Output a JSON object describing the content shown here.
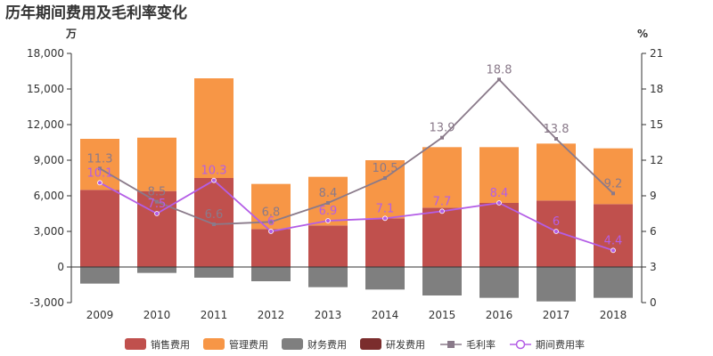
{
  "chart_data": {
    "type": "bar",
    "title": "历年期间费用及毛利率变化",
    "left_unit": "万",
    "right_unit": "%",
    "categories": [
      "2009",
      "2010",
      "2011",
      "2012",
      "2013",
      "2014",
      "2015",
      "2016",
      "2017",
      "2018"
    ],
    "left_axis": {
      "min": -3000,
      "max": 18000,
      "ticks": [
        "-3,000",
        "0",
        "3,000",
        "6,000",
        "9,000",
        "12,000",
        "15,000",
        "18,000"
      ]
    },
    "right_axis": {
      "min": 0,
      "max": 21,
      "ticks": [
        "0",
        "3",
        "6",
        "9",
        "12",
        "15",
        "18",
        "21"
      ]
    },
    "series": [
      {
        "name": "销售费用",
        "kind": "bar",
        "color": "#c0504d",
        "values": [
          6500,
          6400,
          7500,
          3200,
          3500,
          4100,
          5000,
          5400,
          5600,
          5300
        ]
      },
      {
        "name": "管理费用",
        "kind": "bar",
        "color": "#f79646",
        "values": [
          4300,
          4500,
          8400,
          3800,
          4100,
          4900,
          5100,
          4700,
          4800,
          4700
        ]
      },
      {
        "name": "财务费用",
        "kind": "bar",
        "color": "#7f7f7f",
        "values": [
          -1400,
          -500,
          -900,
          -1200,
          -1700,
          -1900,
          -2400,
          -2600,
          -2900,
          -2600
        ]
      },
      {
        "name": "研发费用",
        "kind": "bar",
        "color": "#7b2d2d",
        "values": [
          0,
          0,
          0,
          0,
          0,
          0,
          0,
          0,
          0,
          0
        ]
      },
      {
        "name": "毛利率",
        "kind": "line",
        "color": "#8a7a8a",
        "marker": "square",
        "values": [
          11.3,
          8.5,
          6.6,
          6.8,
          8.4,
          10.5,
          13.9,
          18.8,
          13.8,
          9.2
        ],
        "labels": [
          "11.3",
          "8.5",
          "6.6",
          "6.8",
          "8.4",
          "10.5",
          "13.9",
          "18.8",
          "13.8",
          "9.2"
        ]
      },
      {
        "name": "期间费用率",
        "kind": "line",
        "color": "#b45ee6",
        "marker": "circle",
        "values": [
          10.1,
          7.5,
          10.3,
          6,
          6.9,
          7.1,
          7.7,
          8.4,
          6,
          4.4
        ],
        "labels": [
          "10.1",
          "7.5",
          "10.3",
          "6",
          "6.9",
          "7.1",
          "7.7",
          "8.4",
          "6",
          "4.4"
        ]
      }
    ],
    "grid": false,
    "legend": "bottom"
  }
}
